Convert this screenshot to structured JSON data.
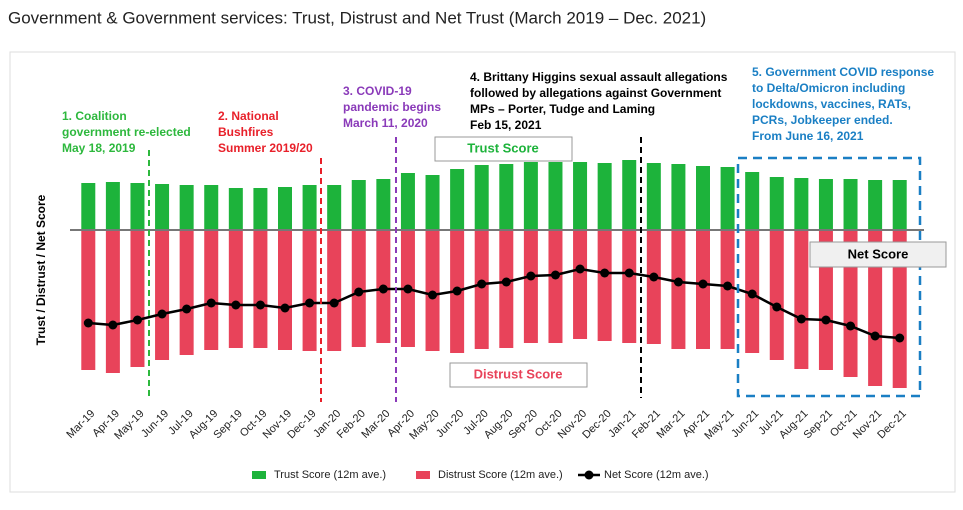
{
  "chart_data": {
    "type": "bar",
    "title": "Government & Government services: Trust, Distrust and Net Trust (March 2019 – Dec. 2021)",
    "ylabel": "Trust / Distrust / Net Score",
    "categories": [
      "Mar-19",
      "Apr-19",
      "May-19",
      "Jun-19",
      "Jul-19",
      "Aug-19",
      "Sep-19",
      "Oct-19",
      "Nov-19",
      "Dec-19",
      "Jan-20",
      "Feb-20",
      "Mar-20",
      "Apr-20",
      "May-20",
      "Jun-20",
      "Jul-20",
      "Aug-20",
      "Sep-20",
      "Oct-20",
      "Nov-20",
      "Dec-20",
      "Jan-21",
      "Feb-21",
      "Mar-21",
      "Apr-21",
      "May-21",
      "Jun-21",
      "Jul-21",
      "Aug-21",
      "Sep-21",
      "Oct-21",
      "Nov-21",
      "Dec-21"
    ],
    "series": [
      {
        "name": "Trust Score (12m ave.)",
        "color": "#1db33b",
        "values": [
          47,
          48,
          47,
          46,
          45,
          45,
          42,
          42,
          43,
          45,
          45,
          50,
          51,
          57,
          55,
          61,
          65,
          66,
          68,
          68,
          68,
          67,
          70,
          67,
          66,
          64,
          63,
          58,
          53,
          52,
          51,
          51,
          50,
          50
        ]
      },
      {
        "name": "Distrust Score (12m ave.)",
        "color": "#e8435a",
        "values": [
          -140,
          -143,
          -137,
          -130,
          -125,
          -120,
          -118,
          -118,
          -120,
          -121,
          -121,
          -117,
          -113,
          -117,
          -121,
          -123,
          -119,
          -118,
          -113,
          -113,
          -109,
          -111,
          -113,
          -114,
          -119,
          -119,
          -119,
          -123,
          -130,
          -139,
          -140,
          -147,
          -156,
          -158
        ]
      },
      {
        "name": "Net Score (12m ave.)",
        "color": "#000000",
        "type": "line",
        "values": [
          -93,
          -95,
          -90,
          -84,
          -79,
          -73,
          -75,
          -75,
          -78,
          -73,
          -73,
          -62,
          -59,
          -59,
          -65,
          -61,
          -54,
          -52,
          -46,
          -45,
          -39,
          -43,
          -43,
          -47,
          -52,
          -54,
          -56,
          -64,
          -77,
          -89,
          -90,
          -96,
          -106,
          -108
        ]
      }
    ],
    "ylim": [
      -170,
      90
    ],
    "box_labels": [
      "Trust Score",
      "Distrust Score",
      "Net Score"
    ],
    "annotations": [
      {
        "color": "#2db83d",
        "lines": [
          "1. Coalition",
          "government re-elected",
          "May 18, 2019"
        ]
      },
      {
        "color": "#e8202a",
        "lines": [
          "2. National",
          "Bushfires",
          "Summer 2019/20"
        ]
      },
      {
        "color": "#8a3ab9",
        "lines": [
          "3. COVID-19",
          "pandemic begins",
          "March 11, 2020"
        ]
      },
      {
        "color": "#000000",
        "lines": [
          "4. Brittany Higgins sexual assault allegations",
          "followed by allegations against Government",
          "MPs – Porter, Tudge and Laming",
          "Feb 15, 2021"
        ]
      },
      {
        "color": "#1a7fc4",
        "lines": [
          "5. Government COVID response",
          "to Delta/Omicron including",
          "lockdowns, vaccines, RATs,",
          "PCRs, Jobkeeper ended.",
          "From June 16, 2021"
        ]
      }
    ]
  }
}
